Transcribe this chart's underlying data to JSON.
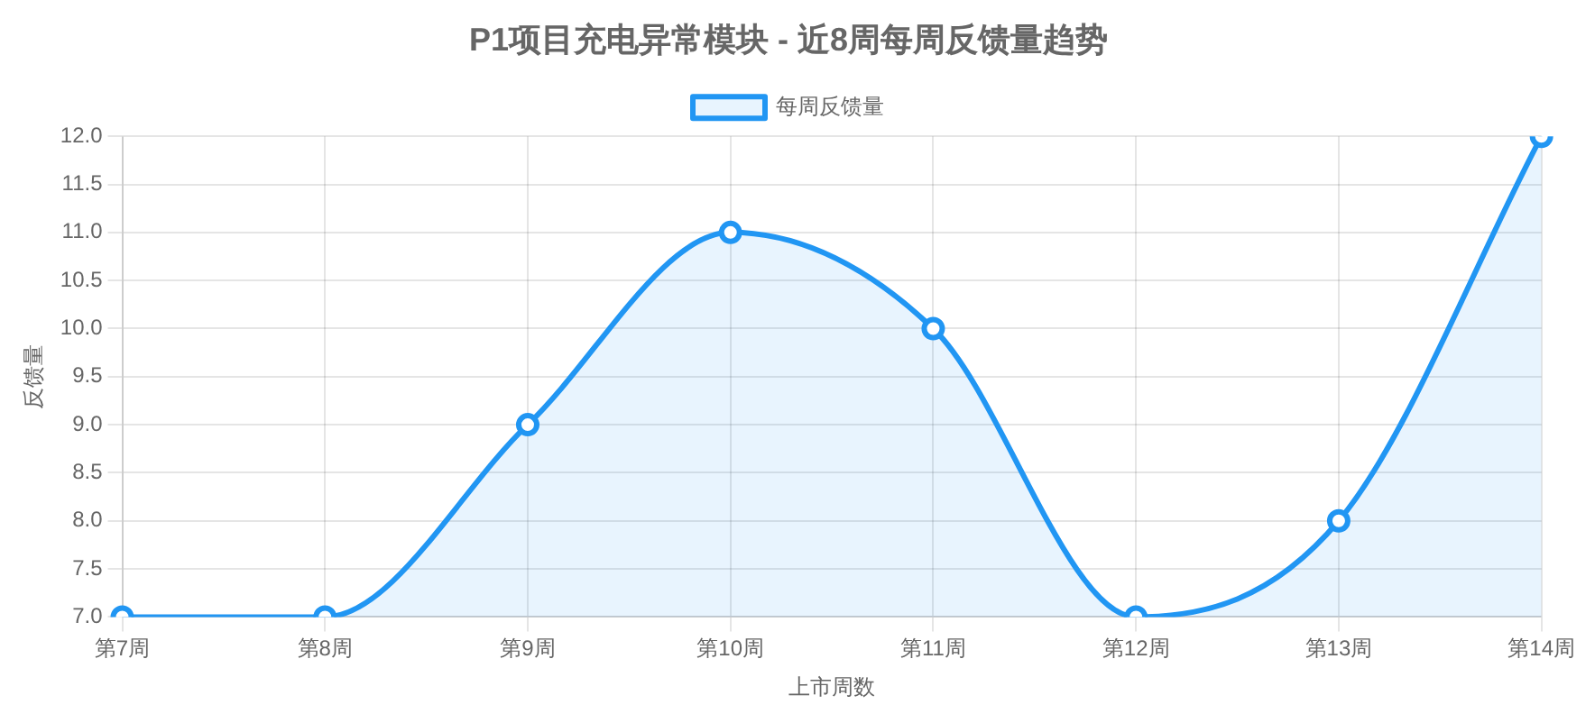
{
  "chart_data": {
    "type": "area",
    "title": "P1项目充电异常模块 - 近8周每周反馈量趋势",
    "xlabel": "上市周数",
    "ylabel": "反馈量",
    "categories": [
      "第7周",
      "第8周",
      "第9周",
      "第10周",
      "第11周",
      "第12周",
      "第13周",
      "第14周"
    ],
    "series": [
      {
        "name": "每周反馈量",
        "color": "#2196f3",
        "values": [
          7,
          7,
          9,
          11,
          10,
          7,
          8,
          12
        ]
      }
    ],
    "ylim": [
      7,
      12
    ],
    "yticks": [
      {
        "value": 7,
        "label": "7.0"
      },
      {
        "value": 7.5,
        "label": "7.5"
      },
      {
        "value": 8,
        "label": "8.0"
      },
      {
        "value": 8.5,
        "label": "8.5"
      },
      {
        "value": 9,
        "label": "9.0"
      },
      {
        "value": 9.5,
        "label": "9.5"
      },
      {
        "value": 10,
        "label": "10.0"
      },
      {
        "value": 10.5,
        "label": "10.5"
      },
      {
        "value": 11,
        "label": "11.0"
      },
      {
        "value": 11.5,
        "label": "11.5"
      },
      {
        "value": 12,
        "label": "12.0"
      }
    ],
    "grid": true,
    "legend": "top",
    "marker": "circle",
    "line_style": "solid"
  }
}
